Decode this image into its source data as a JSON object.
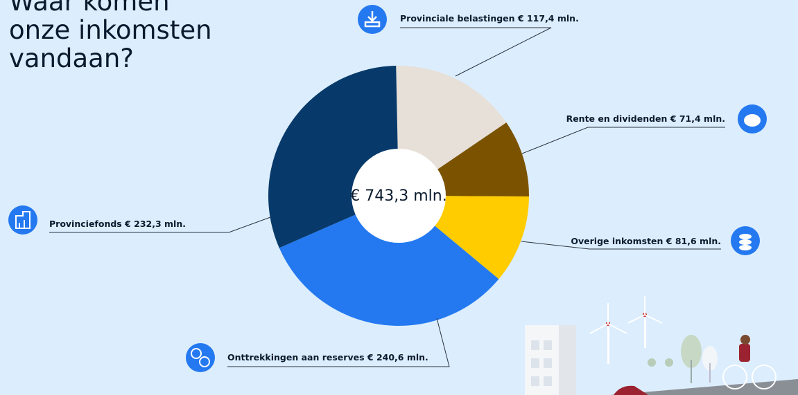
{
  "chart_data": {
    "type": "pie",
    "title": "Waar komen onze inkomsten vandaan?",
    "center_label": "€ 743,3 mln.",
    "categories": [
      "Provinciale belastingen",
      "Rente en dividenden",
      "Overige inkomsten",
      "Onttrekkingen aan reserves",
      "Provinciefonds"
    ],
    "values": [
      117.4,
      71.4,
      81.6,
      240.6,
      232.3
    ],
    "value_labels": [
      "€ 117,4 mln.",
      "€ 71,4 mln.",
      "€ 81,6 mln.",
      "€ 240,6 mln.",
      "€ 232,3 mln."
    ],
    "colors": [
      "#e7e0d8",
      "#7b5300",
      "#ffcc00",
      "#2479f0",
      "#073a6a"
    ]
  }
}
